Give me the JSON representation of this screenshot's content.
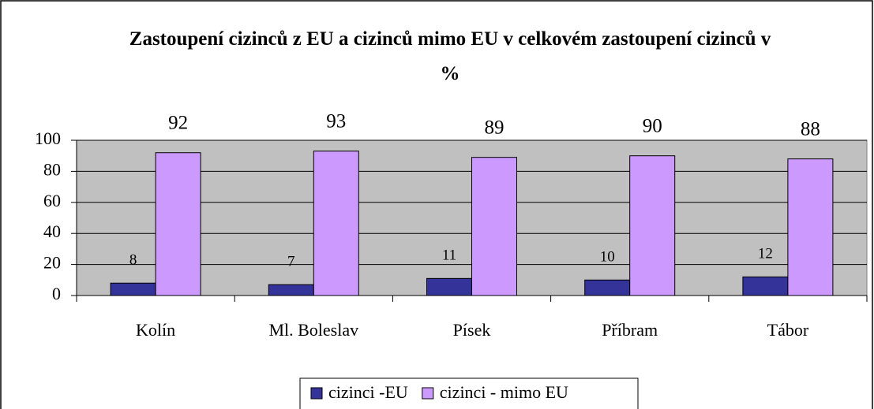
{
  "chart_data": {
    "type": "bar",
    "title": "Zastoupení cizinců z EU a cizinců mimo EU v celkovém zastoupení cizinců v %",
    "categories": [
      "Kolín",
      "Ml. Boleslav",
      "Písek",
      "Příbram",
      "Tábor"
    ],
    "series": [
      {
        "name": "cizinci -EU",
        "color": "#333399",
        "values": [
          8,
          7,
          11,
          10,
          12
        ]
      },
      {
        "name": "cizinci - mimo EU",
        "color": "#cc99ff",
        "values": [
          92,
          93,
          89,
          90,
          88
        ]
      }
    ],
    "ylim": [
      0,
      100
    ],
    "yticks": [
      0,
      20,
      40,
      60,
      80,
      100
    ],
    "grid": true,
    "legend": "bottom"
  }
}
